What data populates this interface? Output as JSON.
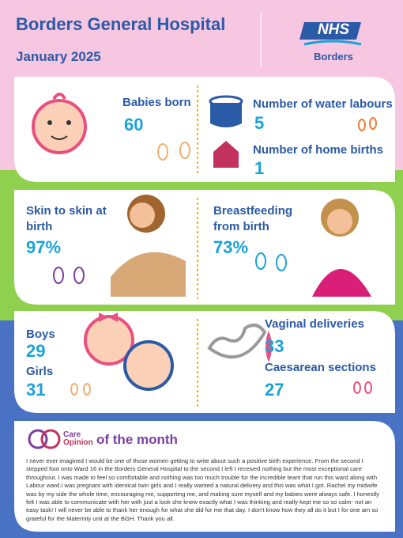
{
  "header": {
    "title": "Borders General Hospital",
    "subtitle": "January 2025",
    "logo": {
      "mark": "NHS",
      "org": "Borders"
    }
  },
  "stats": {
    "babies_born": {
      "label": "Babies born",
      "value": "60"
    },
    "water_labours": {
      "label": "Number of water labours",
      "value": "5"
    },
    "home_births": {
      "label": "Number of home births",
      "value": "1"
    },
    "skin_to_skin": {
      "label": "Skin to skin at birth",
      "value": "97%"
    },
    "breastfeeding": {
      "label": "Breastfeeding from birth",
      "value": "73%"
    },
    "boys": {
      "label": "Boys",
      "value": "29"
    },
    "girls": {
      "label": "Girls",
      "value": "31"
    },
    "vaginal": {
      "label": "Vaginal deliveries",
      "value": "33"
    },
    "caesarean": {
      "label": "Caesarean sections",
      "value": "27"
    }
  },
  "care_opinion": {
    "brand_top": "Care",
    "brand_bottom": "Opinion",
    "heading": "of the month",
    "story": "I never ever imagined I would be one of those women getting to write about such a positive birth experience. From the second I stepped foot onto Ward 16 in the Borders General Hospital to the second I left I received nothing but the most exceptional care throughout. I was made to feel so comfortable and nothing was too much trouble for the incredible team that run this ward along with Labour ward.I was pregnant with identical twin girls and I really wanted a natural delivery and this was what I got. Rachel my midwife was by my side the whole time, encouraging me, supporting me, and making sure myself and my babies were always safe.  I honestly felt I was able to communicate with her with just a look she knew exactly what I was thinking and really kept me so so calm- not an easy task! I will never be able to thank her enough for what she did for me that day. I don't know how they all do it but I for one am so grateful for the Maternity unit at the BGH. Thank you all."
  }
}
